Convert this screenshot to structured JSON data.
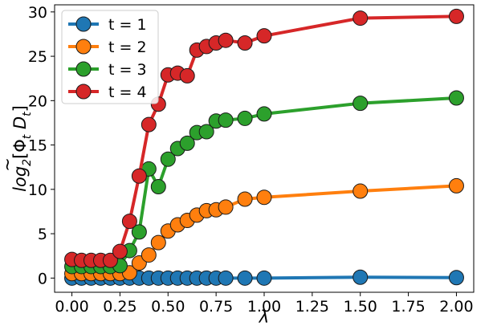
{
  "chart_data": {
    "type": "line",
    "xlabel": "λ",
    "ylabel_parts": {
      "prefix": "log",
      "base": "2",
      "open": "[",
      "tilde": "~",
      "phi": "Φ",
      "phi_sub": "t",
      "d": "D",
      "d_sub": "t",
      "close": "]"
    },
    "xlim": [
      -0.09,
      2.09
    ],
    "ylim": [
      -1.6,
      30.8
    ],
    "xticks": [
      0.0,
      0.25,
      0.5,
      0.75,
      1.0,
      1.25,
      1.5,
      1.75,
      2.0
    ],
    "xtick_labels": [
      "0.00",
      "0.25",
      "0.50",
      "0.75",
      "1.00",
      "1.25",
      "1.50",
      "1.75",
      "2.00"
    ],
    "yticks": [
      0,
      5,
      10,
      15,
      20,
      25,
      30
    ],
    "ytick_labels": [
      "0",
      "5",
      "10",
      "15",
      "20",
      "25",
      "30"
    ],
    "grid": false,
    "legend_position": "top-left",
    "x": [
      0.0,
      0.05,
      0.1,
      0.15,
      0.2,
      0.25,
      0.3,
      0.35,
      0.4,
      0.45,
      0.5,
      0.55,
      0.6,
      0.65,
      0.7,
      0.75,
      0.8,
      0.9,
      1.0,
      1.5,
      2.0
    ],
    "series": [
      {
        "name": "t = 1",
        "color": "#1f77b4",
        "values": [
          0.0,
          0.0,
          0.0,
          0.0,
          0.0,
          0.0,
          0.0,
          0.0,
          0.0,
          0.0,
          0.0,
          0.0,
          0.0,
          0.0,
          0.0,
          0.0,
          0.0,
          0.0,
          0.0,
          0.1,
          0.05
        ]
      },
      {
        "name": "t = 2",
        "color": "#ff7f0e",
        "values": [
          0.5,
          0.5,
          0.5,
          0.5,
          0.5,
          0.5,
          0.6,
          1.7,
          2.6,
          4.0,
          5.3,
          6.0,
          6.5,
          7.1,
          7.6,
          7.7,
          8.0,
          8.9,
          9.1,
          9.8,
          10.4
        ]
      },
      {
        "name": "t = 3",
        "color": "#2ca02c",
        "values": [
          1.3,
          1.3,
          1.3,
          1.3,
          1.3,
          1.4,
          3.1,
          5.2,
          12.3,
          10.3,
          13.4,
          14.6,
          15.2,
          16.4,
          16.5,
          17.7,
          17.8,
          18.0,
          18.5,
          19.7,
          20.3
        ]
      },
      {
        "name": "t = 4",
        "color": "#d62728",
        "values": [
          2.1,
          2.0,
          2.0,
          2.0,
          2.0,
          3.0,
          6.4,
          11.5,
          17.3,
          19.6,
          22.9,
          23.1,
          22.8,
          25.7,
          26.1,
          26.5,
          26.8,
          26.5,
          27.3,
          29.3,
          29.5
        ]
      }
    ]
  }
}
